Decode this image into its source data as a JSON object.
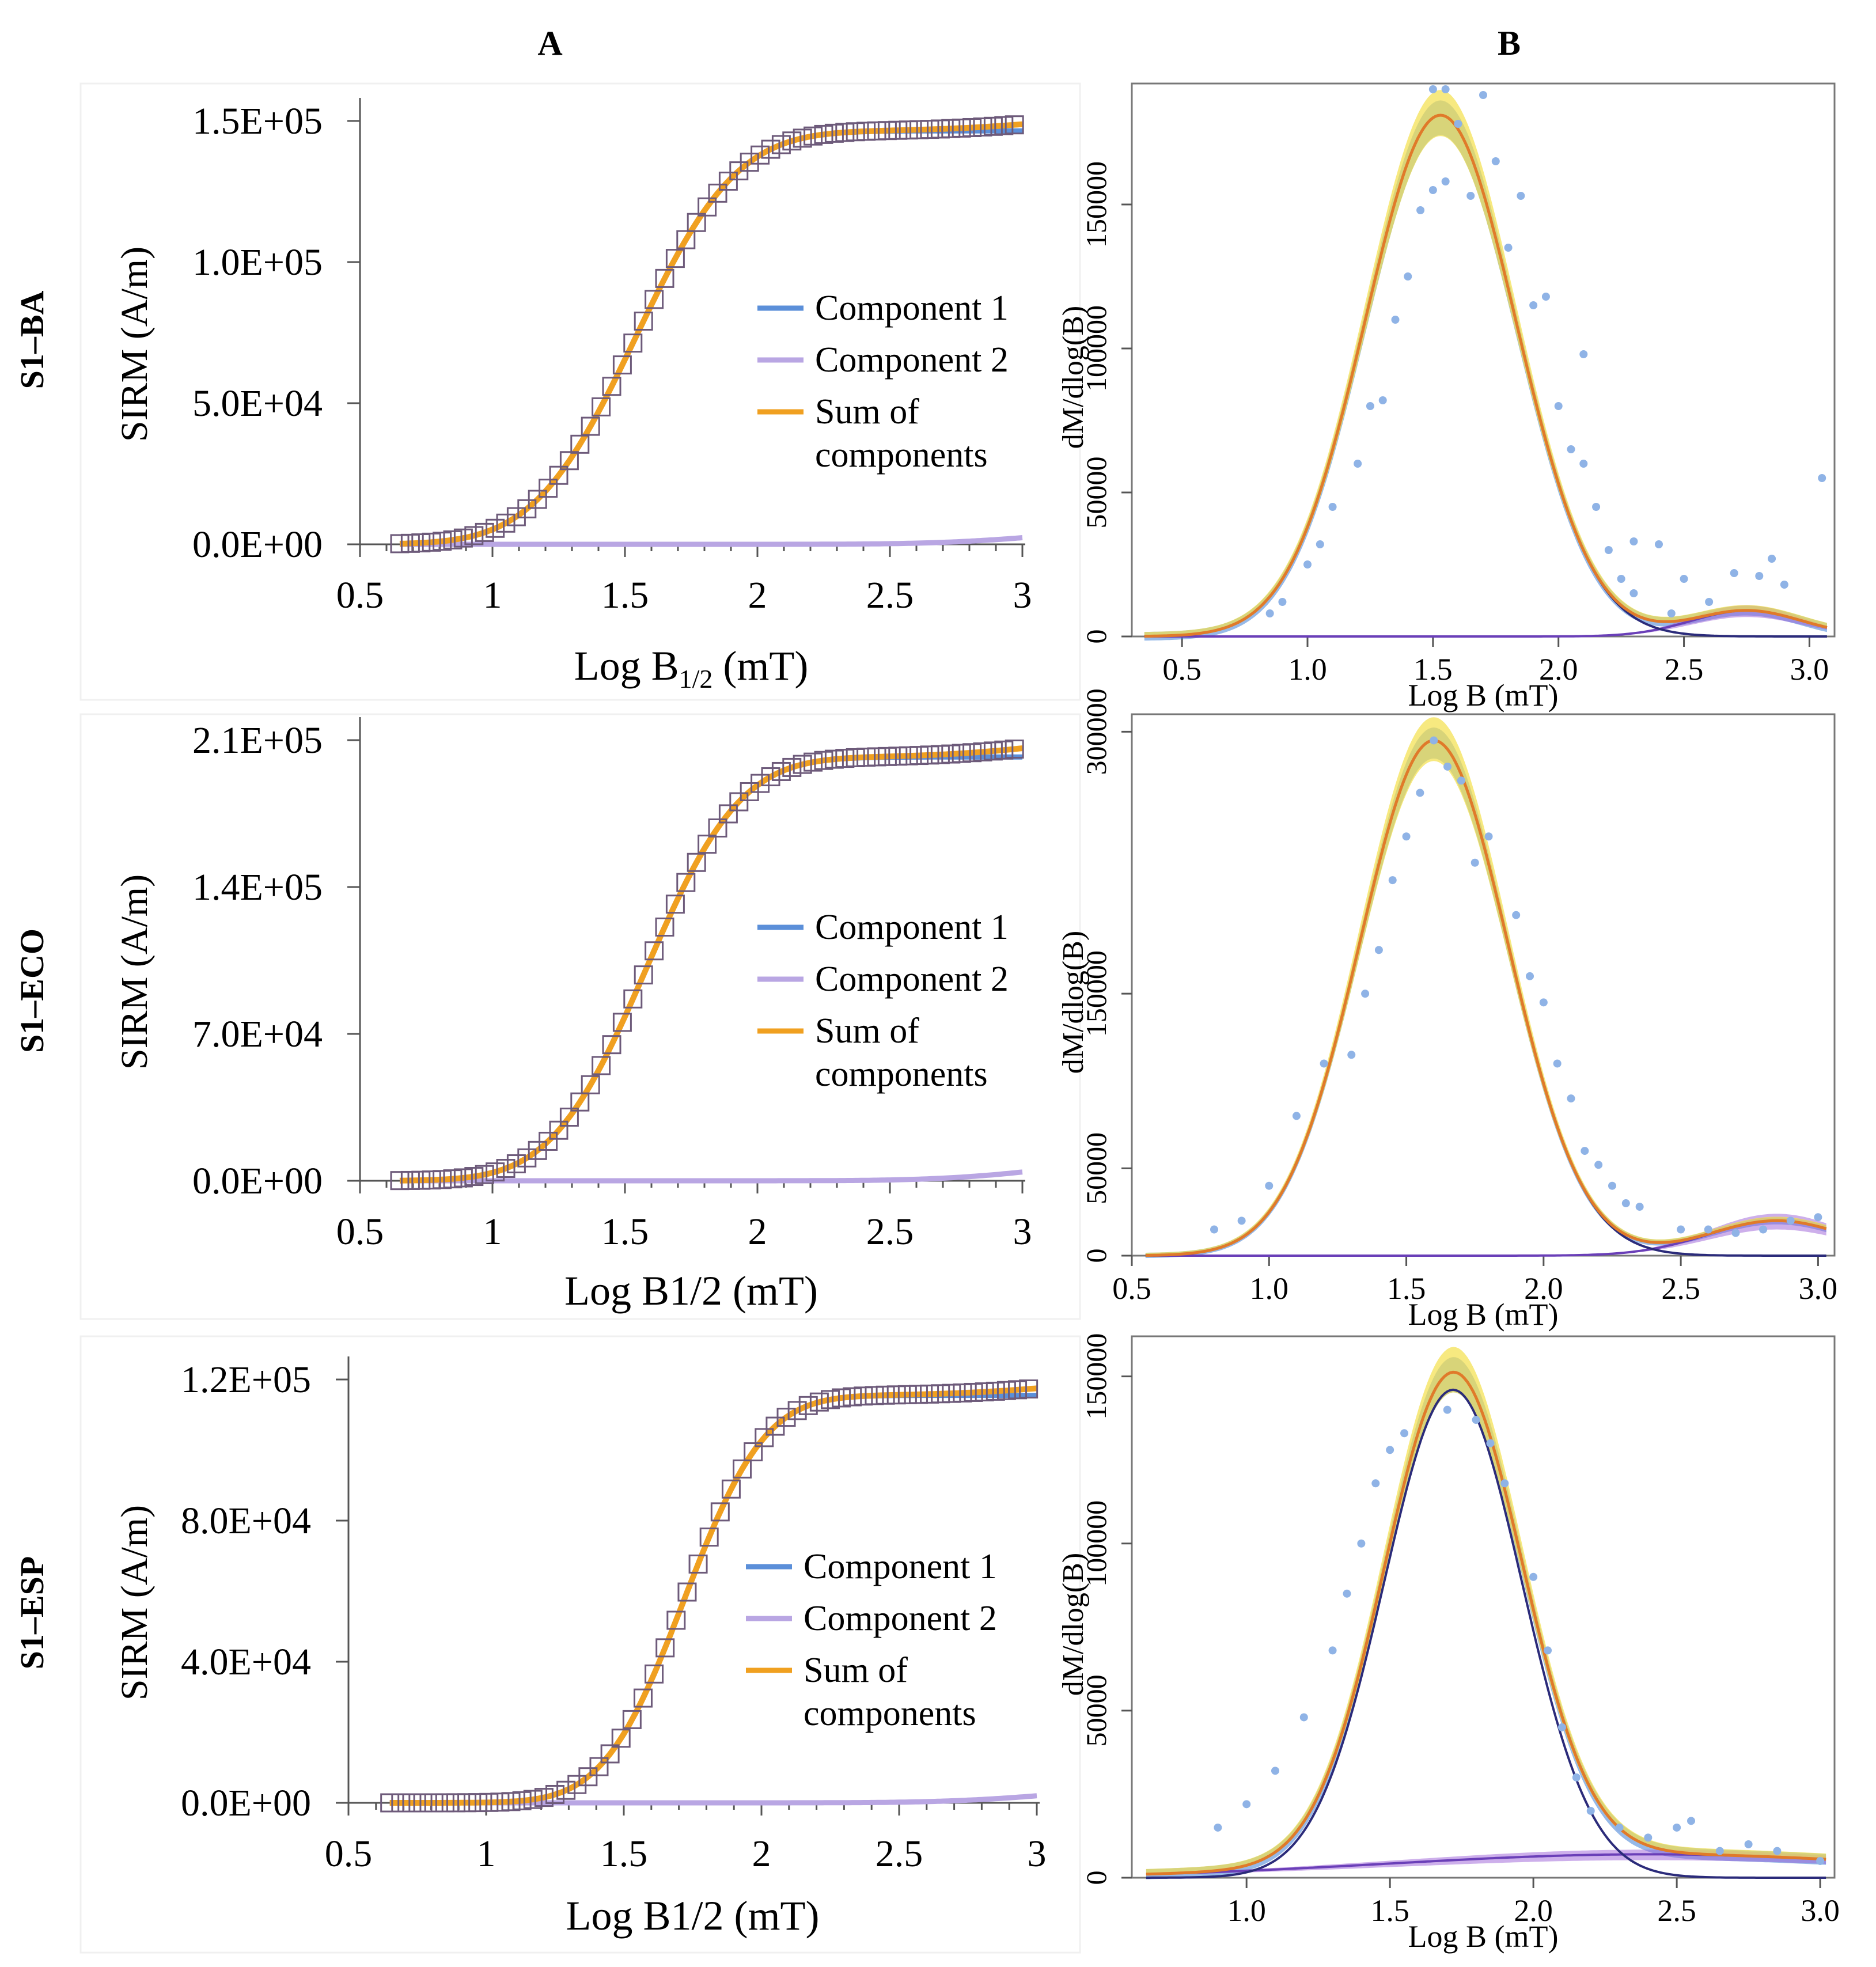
{
  "column_headers": [
    "A",
    "B"
  ],
  "rows": [
    {
      "sample_label": "S1–BA",
      "a": {
        "ylabel": "SIRM (A/m)",
        "xlabel": "Log B1/2 (mT)",
        "xlabel_main": "Log B",
        "xlabel_sub": "1/2",
        "xlabel_tail": " (mT)",
        "xticks": [
          "0.5",
          "1",
          "1.5",
          "2",
          "2.5",
          "3"
        ],
        "yticks": [
          "0.0E+00",
          "5.0E+04",
          "1.0E+05",
          "1.5E+05"
        ],
        "legend": [
          "Component 1",
          "Component 2",
          "Sum of",
          "components"
        ]
      },
      "b": {
        "ylabel": "dM/dlog(B)",
        "xlabel": "Log B (mT)",
        "xticks": [
          "0.5",
          "1.0",
          "1.5",
          "2.0",
          "2.5",
          "3.0"
        ],
        "yticks": [
          "0",
          "50000",
          "100000",
          "150000"
        ]
      }
    },
    {
      "sample_label": "S1–ECO",
      "a": {
        "ylabel": "SIRM (A/m)",
        "xlabel": "Log B1/2 (mT)",
        "xlabel_main": "Log B1/2 (mT)",
        "xlabel_sub": "",
        "xlabel_tail": "",
        "xticks": [
          "0.5",
          "1",
          "1.5",
          "2",
          "2.5",
          "3"
        ],
        "yticks": [
          "0.0E+00",
          "7.0E+04",
          "1.4E+05",
          "2.1E+05"
        ],
        "legend": [
          "Component 1",
          "Component 2",
          "Sum of",
          "components"
        ]
      },
      "b": {
        "ylabel": "dM/dlog(B)",
        "xlabel": "Log B (mT)",
        "xticks": [
          "0.5",
          "1.0",
          "1.5",
          "2.0",
          "2.5",
          "3.0"
        ],
        "yticks": [
          "0",
          "50000",
          "150000",
          "300000"
        ]
      }
    },
    {
      "sample_label": "S1–ESP",
      "a": {
        "ylabel": "SIRM (A/m)",
        "xlabel": "Log B1/2 (mT)",
        "xlabel_main": "Log B1/2 (mT)",
        "xlabel_sub": "",
        "xlabel_tail": "",
        "xticks": [
          "0.5",
          "1",
          "1.5",
          "2",
          "2.5",
          "3"
        ],
        "yticks": [
          "0.0E+00",
          "4.0E+04",
          "8.0E+04",
          "1.2E+05"
        ],
        "legend": [
          "Component 1",
          "Component 2",
          "Sum of",
          "components"
        ]
      },
      "b": {
        "ylabel": "dM/dlog(B)",
        "xlabel": "Log B (mT)",
        "xticks": [
          "1.0",
          "1.5",
          "2.0",
          "2.5",
          "3.0"
        ],
        "yticks": [
          "0",
          "50000",
          "100000",
          "150000"
        ]
      }
    }
  ],
  "colors": {
    "component1": "#5b8fd9",
    "component2": "#b9a6e3",
    "sum": "#f0a020",
    "points": "#8fb3e6",
    "curve_purple": "#6a3fb8",
    "band_yellow": "#f3e04a",
    "band_blue": "#3f7fd6",
    "band_purple": "#9b5fd8",
    "axis": "#000000"
  },
  "chart_data": [
    {
      "type": "line",
      "panel": "S1–BA A",
      "xlabel": "Log B1/2 (mT)",
      "ylabel": "SIRM (A/m)",
      "xlim": [
        0.5,
        3.0
      ],
      "ylim": [
        0,
        150000
      ],
      "series": [
        {
          "name": "Component 1",
          "model": "cum_gauss",
          "amp": 146500,
          "mu": 1.54,
          "sigma": 0.3
        },
        {
          "name": "Component 2",
          "model": "cum_gauss",
          "amp": 7000,
          "mu": 3.15,
          "sigma": 0.35
        },
        {
          "name": "Sum of components"
        }
      ],
      "measured_x": [
        0.65,
        3.0,
        0.04
      ]
    },
    {
      "type": "line",
      "panel": "S1–BA B",
      "xlabel": "Log B (mT)",
      "ylabel": "dM/dlog(B)",
      "xlim": [
        0.3,
        3.1
      ],
      "ylim": [
        0,
        192000
      ],
      "gauss": [
        {
          "amp": 181000,
          "mu": 1.53,
          "sigma": 0.3
        },
        {
          "amp": 9000,
          "mu": 2.75,
          "sigma": 0.22
        }
      ],
      "points": [
        [
          0.85,
          8000
        ],
        [
          0.9,
          12000
        ],
        [
          1.0,
          25000
        ],
        [
          1.05,
          32000
        ],
        [
          1.1,
          45000
        ],
        [
          1.2,
          60000
        ],
        [
          1.25,
          80000
        ],
        [
          1.3,
          82000
        ],
        [
          1.35,
          110000
        ],
        [
          1.4,
          125000
        ],
        [
          1.45,
          148000
        ],
        [
          1.5,
          155000
        ],
        [
          1.55,
          158000
        ],
        [
          1.5,
          190000
        ],
        [
          1.55,
          190000
        ],
        [
          1.6,
          178000
        ],
        [
          1.65,
          153000
        ],
        [
          1.7,
          188000
        ],
        [
          1.75,
          165000
        ],
        [
          1.8,
          135000
        ],
        [
          1.85,
          153000
        ],
        [
          1.9,
          115000
        ],
        [
          1.95,
          118000
        ],
        [
          2.0,
          80000
        ],
        [
          2.05,
          65000
        ],
        [
          2.1,
          98000
        ],
        [
          2.1,
          60000
        ],
        [
          2.15,
          45000
        ],
        [
          2.2,
          30000
        ],
        [
          2.25,
          20000
        ],
        [
          2.3,
          15000
        ],
        [
          2.3,
          33000
        ],
        [
          2.4,
          32000
        ],
        [
          2.45,
          8000
        ],
        [
          2.5,
          20000
        ],
        [
          2.6,
          12000
        ],
        [
          2.7,
          22000
        ],
        [
          2.8,
          21000
        ],
        [
          2.85,
          27000
        ],
        [
          2.9,
          18000
        ],
        [
          3.05,
          55000
        ]
      ]
    },
    {
      "type": "line",
      "panel": "S1–ECO A",
      "xlabel": "Log B1/2 (mT)",
      "ylabel": "SIRM (A/m)",
      "xlim": [
        0.5,
        3.0
      ],
      "ylim": [
        0,
        235000
      ],
      "series": [
        {
          "name": "Component 1",
          "model": "cum_gauss",
          "amp": 226000,
          "mu": 1.58,
          "sigma": 0.28
        },
        {
          "name": "Component 2",
          "model": "cum_gauss",
          "amp": 14000,
          "mu": 3.15,
          "sigma": 0.35
        },
        {
          "name": "Sum of components"
        }
      ],
      "measured_x": [
        0.65,
        3.0,
        0.04
      ]
    },
    {
      "type": "line",
      "panel": "S1–ECO B",
      "xlabel": "Log B (mT)",
      "ylabel": "dM/dlog(B)",
      "xlim": [
        0.5,
        3.06
      ],
      "ylim": [
        0,
        310000
      ],
      "gauss": [
        {
          "amp": 295000,
          "mu": 1.6,
          "sigma": 0.27
        },
        {
          "amp": 20000,
          "mu": 2.85,
          "sigma": 0.25
        }
      ],
      "points": [
        [
          0.8,
          15000
        ],
        [
          0.9,
          20000
        ],
        [
          1.0,
          40000
        ],
        [
          1.1,
          80000
        ],
        [
          1.2,
          110000
        ],
        [
          1.3,
          115000
        ],
        [
          1.35,
          150000
        ],
        [
          1.4,
          175000
        ],
        [
          1.45,
          215000
        ],
        [
          1.5,
          240000
        ],
        [
          1.55,
          265000
        ],
        [
          1.6,
          295000
        ],
        [
          1.65,
          280000
        ],
        [
          1.7,
          272000
        ],
        [
          1.75,
          225000
        ],
        [
          1.8,
          240000
        ],
        [
          1.9,
          195000
        ],
        [
          1.95,
          160000
        ],
        [
          2.0,
          145000
        ],
        [
          2.05,
          110000
        ],
        [
          2.1,
          90000
        ],
        [
          2.15,
          60000
        ],
        [
          2.2,
          52000
        ],
        [
          2.25,
          40000
        ],
        [
          2.3,
          30000
        ],
        [
          2.35,
          28000
        ],
        [
          2.5,
          15000
        ],
        [
          2.6,
          15000
        ],
        [
          2.7,
          13000
        ],
        [
          2.8,
          15000
        ],
        [
          2.9,
          20000
        ],
        [
          3.0,
          22000
        ]
      ]
    },
    {
      "type": "line",
      "panel": "S1–ESP A",
      "xlabel": "Log B1/2 (mT)",
      "ylabel": "SIRM (A/m)",
      "xlim": [
        0.5,
        3.0
      ],
      "ylim": [
        0,
        120000
      ],
      "series": [
        {
          "name": "Component 1",
          "model": "cum_gauss",
          "amp": 115500,
          "mu": 1.72,
          "sigma": 0.23
        },
        {
          "name": "Component 2",
          "model": "cum_gauss",
          "amp": 6000,
          "mu": 3.15,
          "sigma": 0.35
        },
        {
          "name": "Sum of components"
        }
      ],
      "measured_x": [
        0.65,
        3.0,
        0.04
      ]
    },
    {
      "type": "line",
      "panel": "S1–ESP B",
      "xlabel": "Log B (mT)",
      "ylabel": "dM/dlog(B)",
      "xlim": [
        0.6,
        3.05
      ],
      "ylim": [
        0,
        162000
      ],
      "gauss": [
        {
          "amp": 146000,
          "mu": 1.72,
          "sigma": 0.24
        },
        {
          "amp": 7000,
          "mu": 2.4,
          "sigma": 0.9
        }
      ],
      "points": [
        [
          0.9,
          15000
        ],
        [
          1.0,
          22000
        ],
        [
          1.1,
          32000
        ],
        [
          1.2,
          48000
        ],
        [
          1.3,
          68000
        ],
        [
          1.35,
          85000
        ],
        [
          1.4,
          100000
        ],
        [
          1.45,
          118000
        ],
        [
          1.5,
          128000
        ],
        [
          1.55,
          133000
        ],
        [
          1.7,
          140000
        ],
        [
          1.8,
          137000
        ],
        [
          1.85,
          130000
        ],
        [
          1.9,
          118000
        ],
        [
          2.0,
          90000
        ],
        [
          2.05,
          68000
        ],
        [
          2.1,
          45000
        ],
        [
          2.15,
          30000
        ],
        [
          2.2,
          20000
        ],
        [
          2.3,
          15000
        ],
        [
          2.4,
          12000
        ],
        [
          2.5,
          15000
        ],
        [
          2.55,
          17000
        ],
        [
          2.65,
          8000
        ],
        [
          2.75,
          10000
        ],
        [
          2.85,
          8000
        ],
        [
          3.0,
          5000
        ]
      ]
    }
  ]
}
